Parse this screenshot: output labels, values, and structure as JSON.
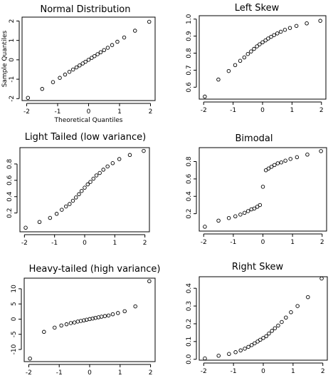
{
  "chart_data": [
    {
      "type": "scatter",
      "title": "Normal Distribution",
      "xlabel": "Theoretical Quantiles",
      "ylabel": "Sample Quantiles",
      "xlim": [
        -2.15,
        2.15
      ],
      "ylim": [
        -2.1,
        2.2
      ],
      "xticks": [
        -2,
        -1,
        0,
        1,
        2
      ],
      "xtick_labels": [
        "-2",
        "-1",
        "0",
        "1",
        "2"
      ],
      "yticks": [
        -2,
        -1,
        0,
        1,
        2
      ],
      "ytick_labels": [
        "-2",
        "-1",
        "0",
        "1",
        "2"
      ],
      "x": [
        -1.96,
        -1.5,
        -1.15,
        -0.93,
        -0.76,
        -0.62,
        -0.5,
        -0.39,
        -0.29,
        -0.19,
        -0.1,
        0,
        0.1,
        0.19,
        0.29,
        0.39,
        0.5,
        0.62,
        0.76,
        0.93,
        1.15,
        1.5,
        1.96
      ],
      "y": [
        -1.96,
        -1.5,
        -1.15,
        -0.93,
        -0.76,
        -0.62,
        -0.5,
        -0.39,
        -0.29,
        -0.19,
        -0.1,
        0,
        0.1,
        0.19,
        0.29,
        0.39,
        0.5,
        0.62,
        0.76,
        0.93,
        1.15,
        1.5,
        1.96
      ],
      "grid": false
    },
    {
      "type": "scatter",
      "title": "Left Skew",
      "xlabel": "",
      "ylabel": "",
      "xlim": [
        -2.15,
        2.15
      ],
      "ylim": [
        0.53,
        1.02
      ],
      "xticks": [
        -2,
        -1,
        0,
        1,
        2
      ],
      "xtick_labels": [
        "-2",
        "-1",
        "0",
        "1",
        "2"
      ],
      "yticks": [
        0.6,
        0.7,
        0.8,
        0.9,
        1.0
      ],
      "ytick_labels": [
        "0.6",
        "0.7",
        "0.8",
        "0.9",
        "1.0"
      ],
      "x": [
        -1.96,
        -1.5,
        -1.15,
        -0.93,
        -0.76,
        -0.62,
        -0.5,
        -0.39,
        -0.29,
        -0.19,
        -0.1,
        0,
        0.1,
        0.19,
        0.29,
        0.39,
        0.5,
        0.62,
        0.76,
        0.93,
        1.15,
        1.5,
        1.96
      ],
      "y": [
        0.545,
        0.645,
        0.695,
        0.73,
        0.755,
        0.775,
        0.795,
        0.81,
        0.825,
        0.84,
        0.852,
        0.864,
        0.875,
        0.886,
        0.896,
        0.906,
        0.916,
        0.926,
        0.937,
        0.948,
        0.96,
        0.975,
        0.99
      ],
      "grid": false
    },
    {
      "type": "scatter",
      "title": "Light Tailed (low variance)",
      "xlabel": "",
      "ylabel": "",
      "xlim": [
        -2.15,
        2.15
      ],
      "ylim": [
        -0.03,
        1.0
      ],
      "xticks": [
        -2,
        -1,
        0,
        1,
        2
      ],
      "xtick_labels": [
        "-2",
        "-1",
        "0",
        "1",
        "2"
      ],
      "yticks": [
        0.2,
        0.4,
        0.6,
        0.8
      ],
      "ytick_labels": [
        "0.2",
        "0.4",
        "0.6",
        "0.8"
      ],
      "x": [
        -1.96,
        -1.5,
        -1.15,
        -0.93,
        -0.76,
        -0.62,
        -0.5,
        -0.39,
        -0.29,
        -0.19,
        -0.1,
        0,
        0.1,
        0.19,
        0.29,
        0.39,
        0.5,
        0.62,
        0.76,
        0.93,
        1.15,
        1.5,
        1.96
      ],
      "y": [
        0.02,
        0.09,
        0.14,
        0.19,
        0.24,
        0.28,
        0.31,
        0.35,
        0.39,
        0.43,
        0.47,
        0.51,
        0.55,
        0.58,
        0.62,
        0.66,
        0.69,
        0.73,
        0.77,
        0.81,
        0.86,
        0.91,
        0.96
      ],
      "grid": false
    },
    {
      "type": "scatter",
      "title": "Bimodal",
      "xlabel": "",
      "ylabel": "",
      "xlim": [
        -2.15,
        2.15
      ],
      "ylim": [
        0.0,
        0.96
      ],
      "xticks": [
        -2,
        -1,
        0,
        1,
        2
      ],
      "xtick_labels": [
        "-2",
        "-1",
        "0",
        "1",
        "2"
      ],
      "yticks": [
        0.2,
        0.4,
        0.6,
        0.8
      ],
      "ytick_labels": [
        "0.2",
        "0.4",
        "0.6",
        "0.8"
      ],
      "x": [
        -1.96,
        -1.5,
        -1.15,
        -0.93,
        -0.76,
        -0.62,
        -0.5,
        -0.39,
        -0.29,
        -0.19,
        -0.1,
        0,
        0.1,
        0.19,
        0.29,
        0.39,
        0.5,
        0.62,
        0.76,
        0.93,
        1.15,
        1.5,
        1.96
      ],
      "y": [
        0.05,
        0.12,
        0.15,
        0.17,
        0.19,
        0.21,
        0.23,
        0.25,
        0.26,
        0.28,
        0.3,
        0.51,
        0.7,
        0.72,
        0.74,
        0.76,
        0.78,
        0.79,
        0.81,
        0.83,
        0.85,
        0.88,
        0.92
      ],
      "grid": false
    },
    {
      "type": "scatter",
      "title": "Heavy-tailed (high variance)",
      "xlabel": "",
      "ylabel": "",
      "xlim": [
        -2.15,
        2.15
      ],
      "ylim": [
        -14,
        13.5
      ],
      "xticks": [
        -2,
        -1,
        0,
        1,
        2
      ],
      "xtick_labels": [
        "-2",
        "-1",
        "0",
        "1",
        "2"
      ],
      "yticks": [
        -10,
        -5,
        0,
        5,
        10
      ],
      "ytick_labels": [
        "-10",
        "-5",
        "0",
        "5",
        "10"
      ],
      "x": [
        -1.96,
        -1.5,
        -1.15,
        -0.93,
        -0.76,
        -0.62,
        -0.5,
        -0.39,
        -0.29,
        -0.19,
        -0.1,
        0,
        0.1,
        0.19,
        0.29,
        0.39,
        0.5,
        0.62,
        0.76,
        0.93,
        1.15,
        1.5,
        1.96
      ],
      "y": [
        -13,
        -4.2,
        -2.8,
        -2.1,
        -1.7,
        -1.3,
        -1.1,
        -0.8,
        -0.6,
        -0.4,
        -0.2,
        0,
        0.2,
        0.4,
        0.6,
        0.8,
        1.0,
        1.2,
        1.6,
        2.0,
        2.6,
        4.2,
        12.5
      ],
      "grid": false
    },
    {
      "type": "scatter",
      "title": "Right Skew",
      "xlabel": "",
      "ylabel": "",
      "xlim": [
        -2.15,
        2.15
      ],
      "ylim": [
        -0.005,
        0.465
      ],
      "xticks": [
        -2,
        -1,
        0,
        1,
        2
      ],
      "xtick_labels": [
        "-2",
        "-1",
        "0",
        "1",
        "2"
      ],
      "yticks": [
        0.0,
        0.1,
        0.2,
        0.3,
        0.4
      ],
      "ytick_labels": [
        "0.0",
        "0.1",
        "0.2",
        "0.3",
        "0.4"
      ],
      "x": [
        -1.96,
        -1.5,
        -1.15,
        -0.93,
        -0.76,
        -0.62,
        -0.5,
        -0.39,
        -0.29,
        -0.19,
        -0.1,
        0,
        0.1,
        0.19,
        0.29,
        0.39,
        0.5,
        0.62,
        0.76,
        0.93,
        1.15,
        1.5,
        1.96
      ],
      "y": [
        0.005,
        0.02,
        0.03,
        0.04,
        0.05,
        0.06,
        0.07,
        0.08,
        0.09,
        0.1,
        0.11,
        0.12,
        0.13,
        0.145,
        0.16,
        0.175,
        0.19,
        0.21,
        0.235,
        0.265,
        0.3,
        0.35,
        0.455
      ],
      "grid": false
    }
  ]
}
